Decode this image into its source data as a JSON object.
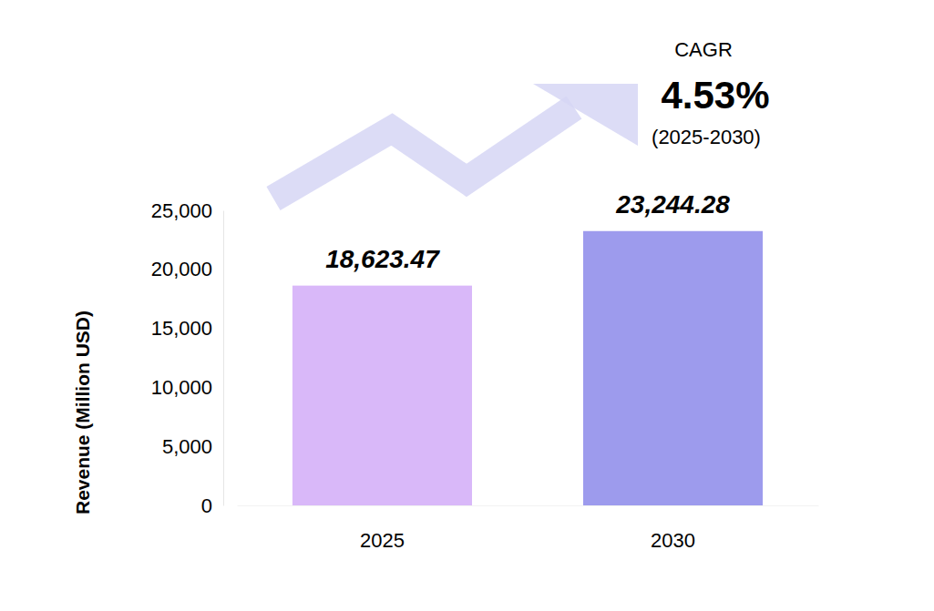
{
  "chart_data": {
    "type": "bar",
    "y_label": "Revenue (Million USD)",
    "categories": [
      "2025",
      "2030"
    ],
    "values": [
      18623.47,
      23244.28
    ],
    "value_labels": [
      "18,623.47",
      "23,244.28"
    ],
    "colors": [
      "#d9b8f9",
      "#9d9bed"
    ],
    "ylim": [
      0,
      25000
    ],
    "yticks": [
      0,
      {
        "value": 5000,
        "label": "5,000"
      },
      {
        "value": 10000,
        "label": "10,000"
      },
      {
        "value": 15000,
        "label": "15,000"
      },
      {
        "value": 20000,
        "label": "20,000"
      },
      {
        "value": 25000,
        "label": "25,000"
      }
    ],
    "grid": false,
    "data_labels": true,
    "annotations": [
      "CAGR",
      "4.53%",
      "(2025-2030)"
    ]
  }
}
